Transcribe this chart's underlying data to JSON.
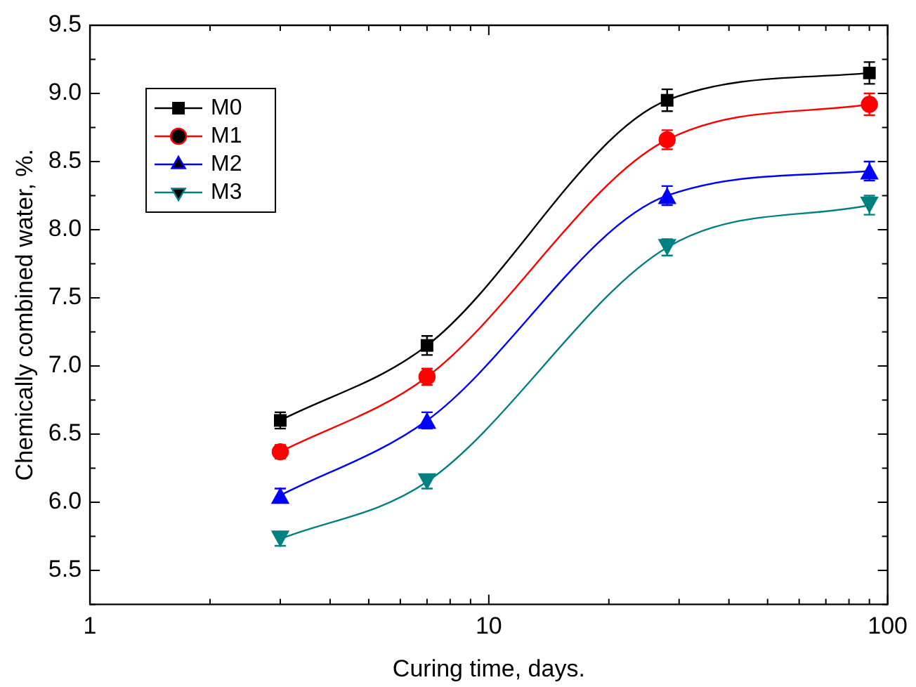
{
  "chart_data": {
    "type": "line",
    "xlabel": "Curing time, days.",
    "ylabel": "Chemically combined water, %.",
    "log": "x",
    "x": [
      3,
      7,
      28,
      90
    ],
    "xlim": [
      1,
      100
    ],
    "xticks": [
      1,
      {
        "value": 2,
        "label": null
      },
      {
        "value": 3,
        "label": null
      },
      {
        "value": 4,
        "label": null
      },
      {
        "value": 5,
        "label": null
      },
      {
        "value": 6,
        "label": null
      },
      {
        "value": 7,
        "label": null
      },
      {
        "value": 8,
        "label": null
      },
      {
        "value": 9,
        "label": null
      },
      10,
      {
        "value": 20,
        "label": null
      },
      {
        "value": 30,
        "label": null
      },
      {
        "value": 40,
        "label": null
      },
      {
        "value": 50,
        "label": null
      },
      {
        "value": 60,
        "label": null
      },
      {
        "value": 70,
        "label": null
      },
      {
        "value": 80,
        "label": null
      },
      {
        "value": 90,
        "label": null
      },
      100
    ],
    "ylim": [
      5.25,
      9.5
    ],
    "yticks": [
      {
        "value": 5.25,
        "label": null
      },
      {
        "value": 5.5,
        "label": "5.5"
      },
      {
        "value": 5.75,
        "label": null
      },
      {
        "value": 6,
        "label": "6.0"
      },
      {
        "value": 6.25,
        "label": null
      },
      {
        "value": 6.5,
        "label": "6.5"
      },
      {
        "value": 6.75,
        "label": null
      },
      {
        "value": 7,
        "label": "7.0"
      },
      {
        "value": 7.25,
        "label": null
      },
      {
        "value": 7.5,
        "label": "7.5"
      },
      {
        "value": 7.75,
        "label": null
      },
      {
        "value": 8,
        "label": "8.0"
      },
      {
        "value": 8.25,
        "label": null
      },
      {
        "value": 8.5,
        "label": "8.5"
      },
      {
        "value": 8.75,
        "label": null
      },
      {
        "value": 9,
        "label": "9.0"
      },
      {
        "value": 9.25,
        "label": null
      },
      {
        "value": 9.5,
        "label": "9.5"
      }
    ],
    "grid": false,
    "legend": "top left",
    "line_style": "solid",
    "series": [
      {
        "name": "M0",
        "color": "#000000",
        "marker": "square",
        "values": [
          6.6,
          7.15,
          8.95,
          9.15
        ],
        "errors": [
          0.06,
          0.07,
          0.08,
          0.08
        ]
      },
      {
        "name": "M1",
        "color": "#ff0000",
        "marker": "circle",
        "values": [
          6.37,
          6.92,
          8.66,
          8.92
        ],
        "errors": [
          0.05,
          0.06,
          0.07,
          0.08
        ]
      },
      {
        "name": "M2",
        "color": "#0000ff",
        "marker": "triangle",
        "values": [
          6.05,
          6.6,
          8.25,
          8.43
        ],
        "errors": [
          0.05,
          0.06,
          0.07,
          0.07
        ]
      },
      {
        "name": "M3",
        "color": "#008080",
        "marker": "triangle-down",
        "values": [
          5.73,
          6.15,
          7.87,
          8.18
        ],
        "errors": [
          0.05,
          0.05,
          0.06,
          0.07
        ]
      }
    ]
  }
}
